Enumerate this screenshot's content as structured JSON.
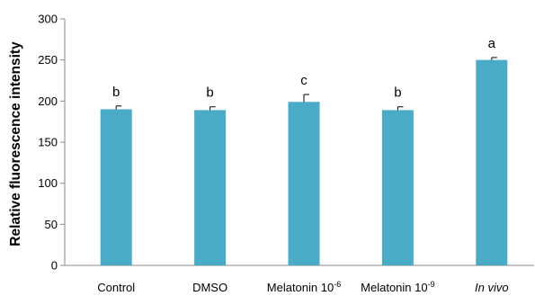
{
  "chart_data": {
    "type": "bar",
    "ylabel": "Relative fluorescence intensity",
    "xlabel": "",
    "ylim": [
      0,
      300
    ],
    "yticks": [
      "0",
      "50",
      "100",
      "150",
      "200",
      "250",
      "300"
    ],
    "grid": false,
    "categories": [
      {
        "text": "Control",
        "sup": "",
        "italic": false
      },
      {
        "text": "DMSO",
        "sup": "",
        "italic": false
      },
      {
        "text": "Melatonin 10",
        "sup": "-6",
        "italic": false
      },
      {
        "text": "Melatonin 10",
        "sup": "-9",
        "italic": false
      },
      {
        "text": "In vivo",
        "sup": "",
        "italic": true
      }
    ],
    "values": [
      190,
      189,
      199,
      189,
      250
    ],
    "errors": [
      4,
      4,
      9,
      4,
      3
    ],
    "significance_letters": [
      "b",
      "b",
      "c",
      "b",
      "a"
    ],
    "bar_color": "#4aabc7",
    "axis_color": "#888888"
  }
}
